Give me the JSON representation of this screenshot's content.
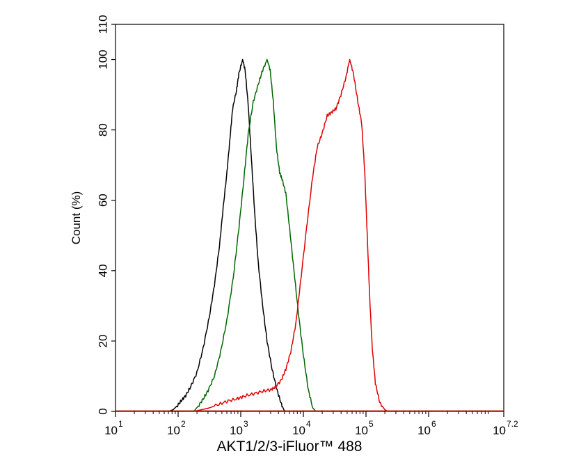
{
  "chart_data": {
    "type": "line",
    "title": "",
    "xlabel": "AKT1/2/3-iFluor™ 488",
    "ylabel": "Count  (%)",
    "x_scale": "log",
    "xlim": [
      1,
      7.2
    ],
    "ylim": [
      0,
      110
    ],
    "x_ticks": [
      {
        "base": "10",
        "exp": "1"
      },
      {
        "base": "10",
        "exp": "2"
      },
      {
        "base": "10",
        "exp": "3"
      },
      {
        "base": "10",
        "exp": "4"
      },
      {
        "base": "10",
        "exp": "5"
      },
      {
        "base": "10",
        "exp": "6"
      },
      {
        "base": "10",
        "exp": "7.2"
      }
    ],
    "y_ticks": [
      "0",
      "20",
      "40",
      "60",
      "80",
      "100",
      "110"
    ],
    "grid": false,
    "legend": "none",
    "series": [
      {
        "color": "#000000",
        "points": [
          [
            1.85,
            0
          ],
          [
            1.92,
            0.5
          ],
          [
            1.98,
            1.5
          ],
          [
            2.05,
            3
          ],
          [
            2.12,
            4.5
          ],
          [
            2.2,
            7
          ],
          [
            2.3,
            11
          ],
          [
            2.4,
            18
          ],
          [
            2.5,
            27
          ],
          [
            2.58,
            36
          ],
          [
            2.66,
            47
          ],
          [
            2.72,
            58
          ],
          [
            2.78,
            68
          ],
          [
            2.83,
            78
          ],
          [
            2.87,
            86
          ],
          [
            2.93,
            91
          ],
          [
            2.97,
            96
          ],
          [
            3.03,
            100
          ],
          [
            3.07,
            97
          ],
          [
            3.12,
            87
          ],
          [
            3.17,
            72
          ],
          [
            3.22,
            57
          ],
          [
            3.28,
            42
          ],
          [
            3.35,
            30
          ],
          [
            3.42,
            20
          ],
          [
            3.5,
            12
          ],
          [
            3.58,
            6
          ],
          [
            3.65,
            2
          ],
          [
            3.7,
            0
          ]
        ]
      },
      {
        "color": "#006600",
        "points": [
          [
            2.25,
            0
          ],
          [
            2.32,
            1.5
          ],
          [
            2.4,
            3.5
          ],
          [
            2.48,
            6
          ],
          [
            2.58,
            10
          ],
          [
            2.68,
            17
          ],
          [
            2.78,
            26
          ],
          [
            2.88,
            38
          ],
          [
            2.97,
            52
          ],
          [
            3.05,
            66
          ],
          [
            3.12,
            79
          ],
          [
            3.2,
            88
          ],
          [
            3.28,
            93
          ],
          [
            3.35,
            97
          ],
          [
            3.42,
            100
          ],
          [
            3.47,
            97
          ],
          [
            3.52,
            88
          ],
          [
            3.57,
            75
          ],
          [
            3.62,
            68
          ],
          [
            3.66,
            66
          ],
          [
            3.72,
            62
          ],
          [
            3.78,
            52
          ],
          [
            3.85,
            40
          ],
          [
            3.92,
            28
          ],
          [
            4.0,
            16
          ],
          [
            4.08,
            6
          ],
          [
            4.15,
            1
          ],
          [
            4.2,
            0
          ]
        ]
      },
      {
        "color": "#e00000",
        "points": [
          [
            2.25,
            0
          ],
          [
            2.35,
            0.4
          ],
          [
            2.5,
            1
          ],
          [
            2.65,
            2
          ],
          [
            2.8,
            3
          ],
          [
            2.95,
            3.6
          ],
          [
            3.05,
            4.3
          ],
          [
            3.2,
            5
          ],
          [
            3.35,
            5.7
          ],
          [
            3.48,
            6.2
          ],
          [
            3.55,
            6.8
          ],
          [
            3.65,
            9
          ],
          [
            3.72,
            12
          ],
          [
            3.8,
            17
          ],
          [
            3.88,
            25
          ],
          [
            3.95,
            36
          ],
          [
            4.05,
            52
          ],
          [
            4.15,
            67
          ],
          [
            4.22,
            75
          ],
          [
            4.3,
            79
          ],
          [
            4.38,
            84
          ],
          [
            4.45,
            85
          ],
          [
            4.52,
            86
          ],
          [
            4.6,
            90
          ],
          [
            4.68,
            95
          ],
          [
            4.74,
            100
          ],
          [
            4.8,
            96
          ],
          [
            4.87,
            88
          ],
          [
            4.93,
            82
          ],
          [
            4.98,
            68
          ],
          [
            5.02,
            50
          ],
          [
            5.06,
            32
          ],
          [
            5.1,
            18
          ],
          [
            5.15,
            8
          ],
          [
            5.22,
            2.5
          ],
          [
            5.3,
            0.5
          ],
          [
            5.35,
            0
          ]
        ]
      }
    ]
  }
}
